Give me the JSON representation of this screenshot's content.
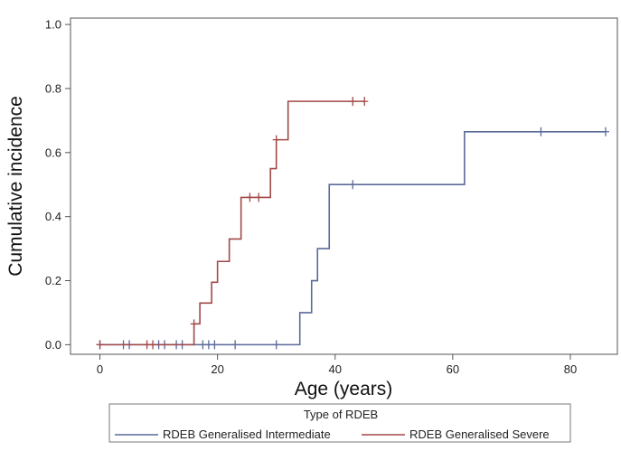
{
  "chart_data": {
    "type": "line",
    "step": true,
    "xlabel": "Age (years)",
    "ylabel": "Cumulative incidence",
    "xlim": [
      -5,
      88
    ],
    "ylim": [
      -0.03,
      1.02
    ],
    "xticks": [
      "0",
      "20",
      "40",
      "60",
      "80"
    ],
    "yticks": [
      "0.0",
      "0.2",
      "0.4",
      "0.6",
      "0.8",
      "1.0"
    ],
    "grid": false,
    "legend": {
      "title": "Type of RDEB",
      "placement": "bottom"
    },
    "series": [
      {
        "name": "RDEB Generalised Intermediate",
        "color": "#5b6a9a",
        "steps": [
          [
            0,
            0.0
          ],
          [
            34,
            0.1
          ],
          [
            36,
            0.2
          ],
          [
            37,
            0.3
          ],
          [
            39,
            0.5
          ],
          [
            62,
            0.665
          ],
          [
            86,
            0.665
          ]
        ],
        "censored": [
          [
            0,
            0.0
          ],
          [
            4,
            0.0
          ],
          [
            5,
            0.0
          ],
          [
            10,
            0.0
          ],
          [
            11,
            0.0
          ],
          [
            13,
            0.0
          ],
          [
            14,
            0.0
          ],
          [
            17.5,
            0.0
          ],
          [
            18.5,
            0.0
          ],
          [
            19.5,
            0.0
          ],
          [
            23,
            0.0
          ],
          [
            30,
            0.0
          ],
          [
            43,
            0.5
          ],
          [
            75,
            0.665
          ],
          [
            86,
            0.665
          ]
        ]
      },
      {
        "name": "RDEB Generalised Severe",
        "color": "#a24848",
        "steps": [
          [
            0,
            0.0
          ],
          [
            16,
            0.065
          ],
          [
            17,
            0.13
          ],
          [
            19,
            0.195
          ],
          [
            20,
            0.26
          ],
          [
            22,
            0.33
          ],
          [
            24,
            0.46
          ],
          [
            29,
            0.55
          ],
          [
            30,
            0.64
          ],
          [
            32,
            0.76
          ],
          [
            45,
            0.76
          ]
        ],
        "censored": [
          [
            0,
            0.0
          ],
          [
            8,
            0.0
          ],
          [
            9,
            0.0
          ],
          [
            16,
            0.065
          ],
          [
            25.5,
            0.46
          ],
          [
            27,
            0.46
          ],
          [
            30,
            0.64
          ],
          [
            43,
            0.76
          ],
          [
            45,
            0.76
          ]
        ]
      }
    ]
  }
}
